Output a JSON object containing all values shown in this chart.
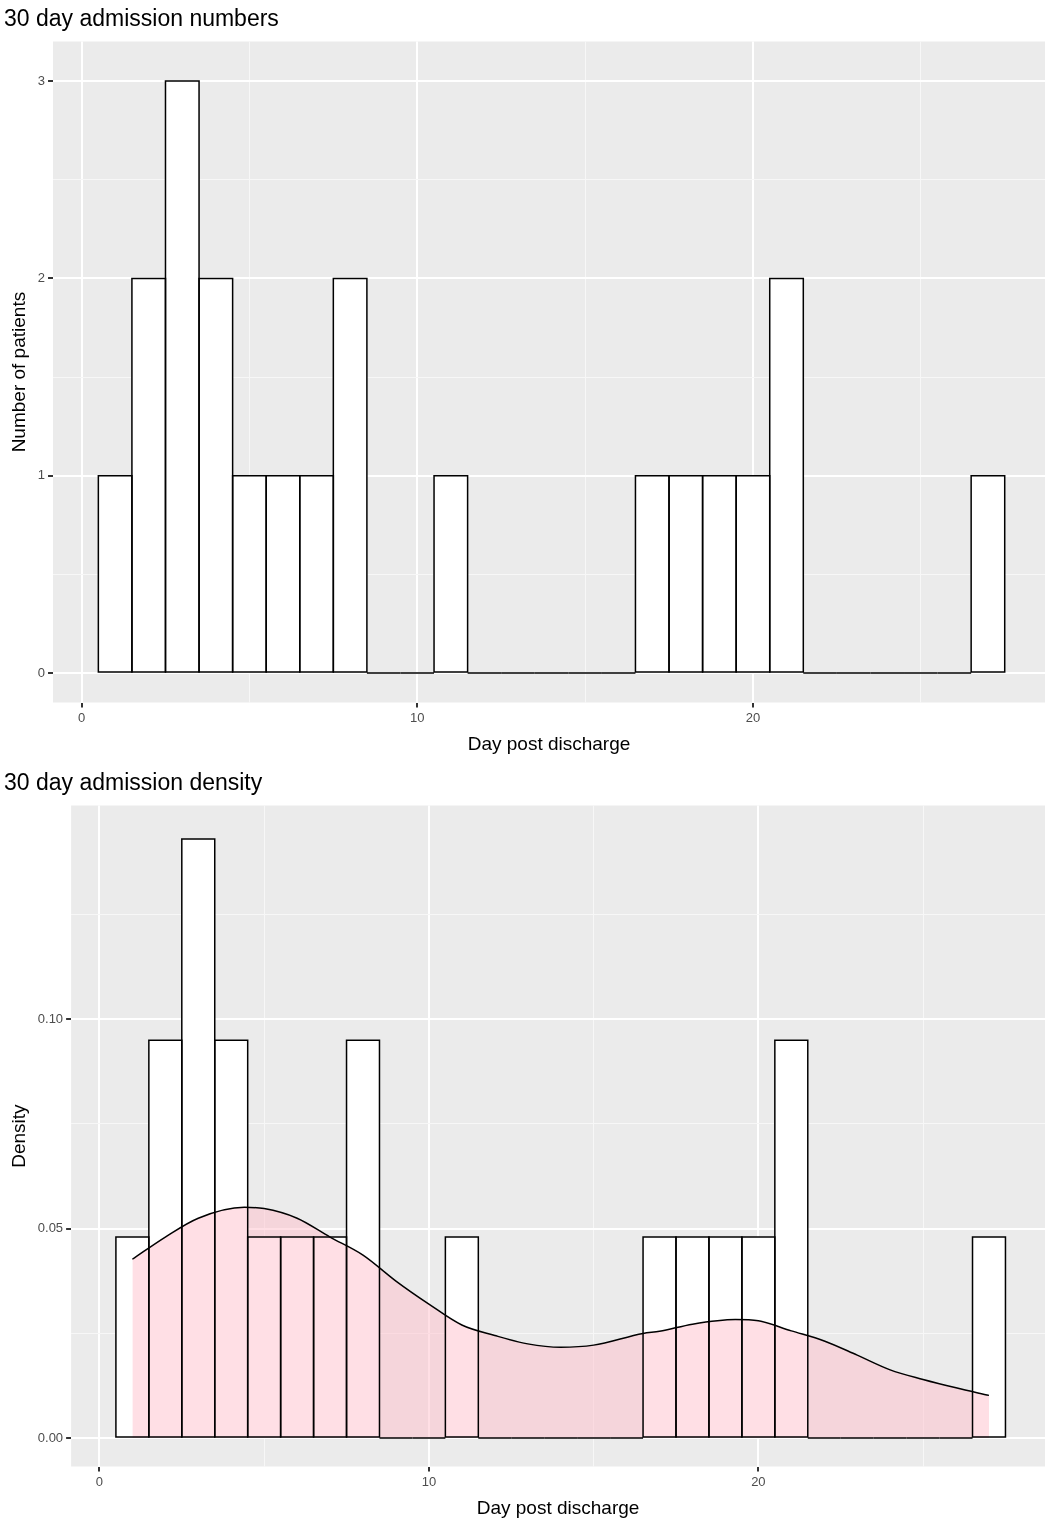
{
  "chart_data": [
    {
      "type": "histogram",
      "title": "30 day admission numbers",
      "xlabel": "Day post discharge",
      "ylabel": "Number of patients",
      "bins": [
        0.5,
        1.5,
        2.5,
        3.5,
        4.5,
        5.5,
        6.5,
        7.5,
        8.5,
        9.5,
        10.5,
        11.5,
        12.5,
        13.5,
        14.5,
        15.5,
        16.5,
        17.5,
        18.5,
        19.5,
        20.5,
        21.5,
        22.5,
        23.5,
        24.5,
        25.5,
        26.5,
        27.5
      ],
      "values": [
        1,
        2,
        3,
        2,
        1,
        1,
        1,
        2,
        0,
        0,
        1,
        0,
        0,
        0,
        0,
        0,
        1,
        1,
        1,
        1,
        2,
        0,
        0,
        0,
        0,
        0,
        1
      ],
      "color": "#ffffff",
      "xlim": [
        -0.85,
        28.7
      ],
      "xticks": [
        0,
        {
          "value": 5,
          "label": null
        },
        10,
        {
          "value": 15,
          "label": null
        },
        20,
        {
          "value": 25,
          "label": null
        }
      ],
      "ylim": [
        -0.15,
        3.2
      ],
      "yticks": [
        0,
        {
          "value": 0.5,
          "label": null
        },
        1,
        {
          "value": 1.5,
          "label": null
        },
        2,
        {
          "value": 2.5,
          "label": null
        },
        3
      ],
      "grid": true,
      "legend": false
    },
    {
      "type": "histogram",
      "title": "30 day admission density",
      "xlabel": "Day post discharge",
      "ylabel": "Density",
      "bins": [
        0.5,
        1.5,
        2.5,
        3.5,
        4.5,
        5.5,
        6.5,
        7.5,
        8.5,
        9.5,
        10.5,
        11.5,
        12.5,
        13.5,
        14.5,
        15.5,
        16.5,
        17.5,
        18.5,
        19.5,
        20.5,
        21.5,
        22.5,
        23.5,
        24.5,
        25.5,
        26.5,
        27.5
      ],
      "series": [
        {
          "type": "histogram",
          "color": "#ffffff",
          "values": [
            0.048,
            0.095,
            0.143,
            0.095,
            0.048,
            0.048,
            0.048,
            0.095,
            0,
            0,
            0.048,
            0,
            0,
            0,
            0,
            0,
            0.048,
            0.048,
            0.048,
            0.048,
            0.095,
            0,
            0,
            0,
            0,
            0,
            0.048
          ]
        },
        {
          "type": "area",
          "color": "#ffc0cb",
          "x": [
            1,
            2,
            3,
            4.4,
            5,
            6,
            7,
            8,
            9,
            10,
            11,
            12,
            13,
            14,
            15,
            16.5,
            17,
            18,
            19.3,
            20,
            21,
            22,
            23,
            24,
            25,
            26,
            27
          ],
          "values": [
            0.0427,
            0.048,
            0.0525,
            0.0551,
            0.0548,
            0.0525,
            0.048,
            0.0437,
            0.0375,
            0.032,
            0.027,
            0.0245,
            0.0225,
            0.0217,
            0.0222,
            0.025,
            0.0255,
            0.0272,
            0.0283,
            0.028,
            0.0256,
            0.0232,
            0.0198,
            0.0163,
            0.014,
            0.012,
            0.0102
          ]
        }
      ],
      "xlim": [
        -0.86,
        28.7
      ],
      "xticks": [
        0,
        {
          "value": 5,
          "label": null
        },
        10,
        {
          "value": 15,
          "label": null
        },
        20,
        {
          "value": 25,
          "label": null
        }
      ],
      "ylim": [
        -0.0068,
        0.151
      ],
      "yticks": [
        {
          "value": 0,
          "label": "0.00"
        },
        {
          "value": 0.025,
          "label": null
        },
        {
          "value": 0.05,
          "label": "0.05"
        },
        {
          "value": 0.075,
          "label": null
        },
        {
          "value": 0.1,
          "label": "0.10"
        },
        {
          "value": 0.125,
          "label": null
        }
      ],
      "grid": true,
      "legend": false
    }
  ]
}
